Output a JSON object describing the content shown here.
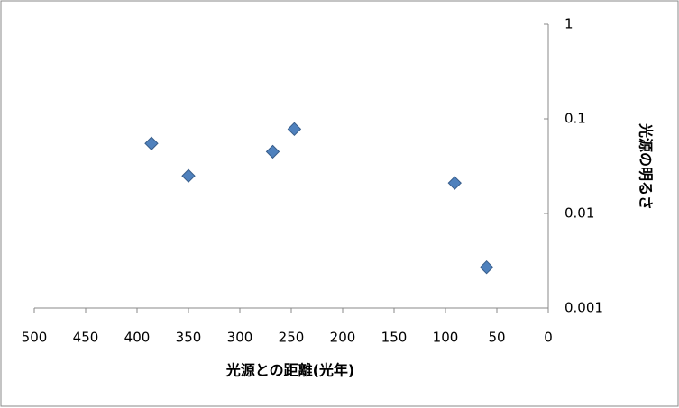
{
  "chart_data": {
    "type": "scatter",
    "x_label": "光源との距離(光年)",
    "y_label": "光源の明るさ",
    "series": [
      {
        "color": "#4f81bd",
        "x": [
          386,
          350,
          268,
          247,
          91,
          60
        ],
        "values": [
          0.055,
          0.025,
          0.045,
          0.078,
          0.021,
          0.0027
        ]
      }
    ],
    "xlim": [
      500,
      0
    ],
    "xticks": [
      500,
      450,
      400,
      350,
      300,
      250,
      200,
      150,
      100,
      50,
      0
    ],
    "ylim": [
      0.001,
      1
    ],
    "yticks": [
      1,
      0.1,
      0.01,
      0.001
    ],
    "yscale": "log"
  }
}
